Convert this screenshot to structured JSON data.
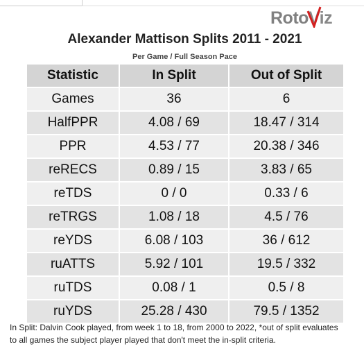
{
  "logo": {
    "part1": "Roto",
    "part2": "Viz"
  },
  "title": "Alexander Mattison Splits 2011 - 2021",
  "subtitle": "Per Game / Full Season Pace",
  "table": {
    "header": [
      "Statistic",
      "In Split",
      "Out of Split"
    ],
    "rows": [
      [
        "Games",
        "36",
        "6"
      ],
      [
        "HalfPPR",
        "4.08 / 69",
        "18.47 / 314"
      ],
      [
        "PPR",
        "4.53 / 77",
        "20.38 / 346"
      ],
      [
        "reRECS",
        "0.89 / 15",
        "3.83 / 65"
      ],
      [
        "reTDS",
        "0 / 0",
        "0.33 / 6"
      ],
      [
        "reTRGS",
        "1.08 / 18",
        "4.5 / 76"
      ],
      [
        "reYDS",
        "6.08 / 103",
        "36 / 612"
      ],
      [
        "ruATTS",
        "5.92 / 101",
        "19.5 / 332"
      ],
      [
        "ruTDS",
        "0.08 / 1",
        "0.5 / 8"
      ],
      [
        "ruYDS",
        "25.28 / 430",
        "79.5 / 1352"
      ]
    ]
  },
  "footnote": {
    "line1": "In Split: Dalvin Cook played, from week 1 to 18, from 2000 to 2022,  *out of split evaluates",
    "line2": "to all games the subject player played that don't meet the in-split criteria."
  }
}
